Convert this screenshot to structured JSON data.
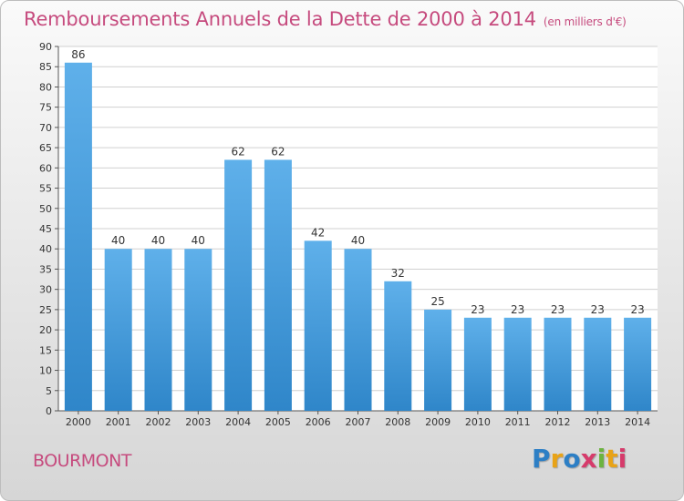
{
  "header": {
    "title": "Remboursements Annuels de la Dette de 2000 à 2014",
    "unit": "(en milliers d'€)"
  },
  "footer": {
    "commune": "BOURMONT",
    "logo_letters": [
      "P",
      "r",
      "o",
      "x",
      "i",
      "t",
      "i"
    ],
    "logo_colors": [
      "#2d7fc5",
      "#e8a317",
      "#2d7fc5",
      "#d63b6b",
      "#6cb33f",
      "#e8a317",
      "#d63b6b"
    ]
  },
  "colors": {
    "bar_light": "#5fb0ea",
    "bar_dark": "#2f86c9",
    "accent": "#c64b7e",
    "axis": "#555555",
    "grid": "#d0d0d0"
  },
  "chart_data": {
    "type": "bar",
    "title": "Remboursements Annuels de la Dette de 2000 à 2014",
    "subtitle": "(en milliers d'€)",
    "xlabel": "",
    "ylabel": "",
    "ylim": [
      0,
      90
    ],
    "yticks": [
      0,
      5,
      10,
      15,
      20,
      25,
      30,
      35,
      40,
      45,
      50,
      55,
      60,
      65,
      70,
      75,
      80,
      85,
      90
    ],
    "categories": [
      "2000",
      "2001",
      "2002",
      "2003",
      "2004",
      "2005",
      "2006",
      "2007",
      "2008",
      "2009",
      "2010",
      "2011",
      "2012",
      "2013",
      "2014"
    ],
    "values": [
      86,
      40,
      40,
      40,
      62,
      62,
      42,
      40,
      32,
      25,
      23,
      23,
      23,
      23,
      23
    ],
    "grid": true,
    "legend": "none"
  }
}
